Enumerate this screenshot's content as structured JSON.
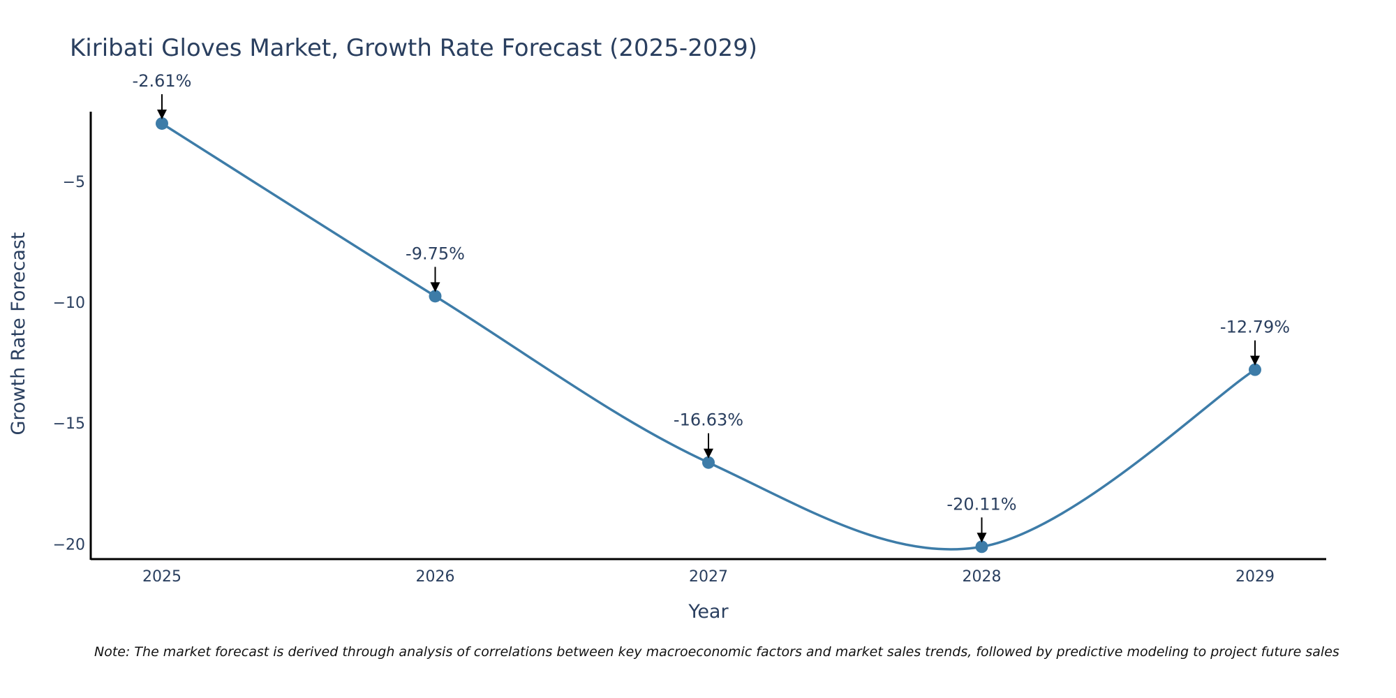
{
  "chart_data": {
    "type": "line",
    "title": "Kiribati Gloves Market, Growth Rate Forecast (2025-2029)",
    "xlabel": "Year",
    "ylabel": "Growth Rate Forecast",
    "categories": [
      "2025",
      "2026",
      "2027",
      "2028",
      "2029"
    ],
    "series": [
      {
        "name": "Growth Rate Forecast",
        "values": [
          -2.61,
          -9.75,
          -16.63,
          -20.11,
          -12.79
        ]
      }
    ],
    "annotations": [
      "-2.61%",
      "-9.75%",
      "-16.63%",
      "-20.11%",
      "-12.79%"
    ],
    "y_ticks": [
      -5,
      -10,
      -15,
      -20
    ],
    "y_tick_labels": [
      "−5",
      "−10",
      "−15",
      "−20"
    ],
    "ylim": [
      -20.65,
      -2.12
    ],
    "grid": false,
    "line_color": "#3d7ca8",
    "marker_color": "#3d7ca8",
    "note": "Note: The market forecast is derived through analysis of correlations between key macroeconomic factors and market sales trends, followed by predictive modeling to project future sales"
  }
}
